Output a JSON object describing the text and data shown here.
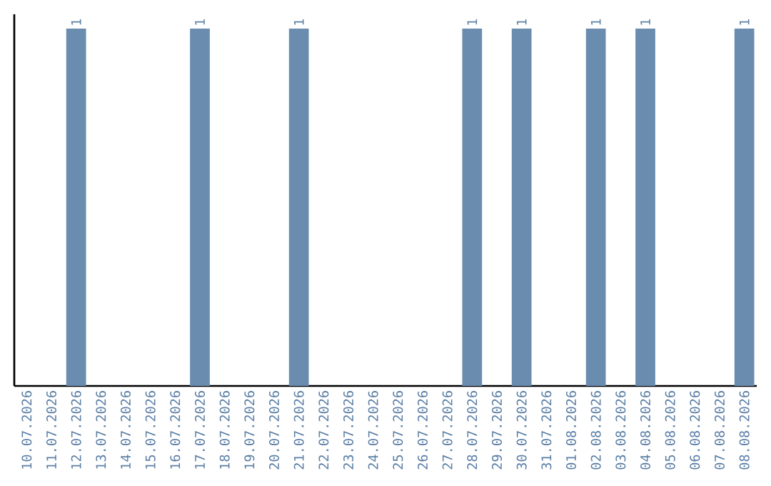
{
  "chart_data": {
    "type": "bar",
    "categories": [
      "10.07.2026",
      "11.07.2026",
      "12.07.2026",
      "13.07.2026",
      "14.07.2026",
      "15.07.2026",
      "16.07.2026",
      "17.07.2026",
      "18.07.2026",
      "19.07.2026",
      "20.07.2026",
      "21.07.2026",
      "22.07.2026",
      "23.07.2026",
      "24.07.2026",
      "25.07.2026",
      "26.07.2026",
      "27.07.2026",
      "28.07.2026",
      "29.07.2026",
      "30.07.2026",
      "31.07.2026",
      "01.08.2026",
      "02.08.2026",
      "03.08.2026",
      "04.08.2026",
      "05.08.2026",
      "06.08.2026",
      "07.08.2026",
      "08.08.2026"
    ],
    "values": [
      0,
      0,
      1,
      0,
      0,
      0,
      0,
      1,
      0,
      0,
      0,
      1,
      0,
      0,
      0,
      0,
      0,
      0,
      1,
      0,
      1,
      0,
      0,
      1,
      0,
      1,
      0,
      0,
      0,
      1
    ],
    "value_labels": [
      null,
      null,
      "1",
      null,
      null,
      null,
      null,
      "1",
      null,
      null,
      null,
      "1",
      null,
      null,
      null,
      null,
      null,
      null,
      "1",
      null,
      "1",
      null,
      null,
      "1",
      null,
      "1",
      null,
      null,
      null,
      "1"
    ],
    "color": "#6a8caf",
    "ylim": [
      0,
      1.04
    ]
  }
}
